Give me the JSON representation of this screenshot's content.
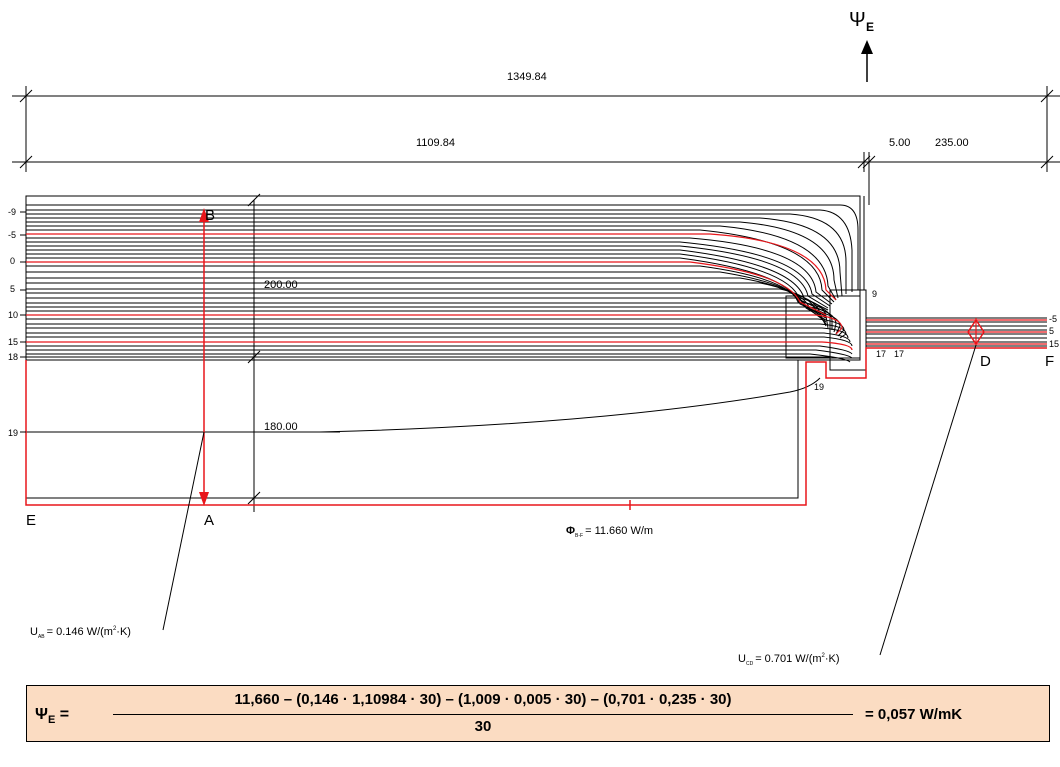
{
  "psi_top": {
    "symbol": "Ψ",
    "subscript": "E"
  },
  "dimensions": {
    "total": "1349.84",
    "left": "1109.84",
    "right_small": "5.00",
    "right_large": "235.00",
    "height_upper": "200.00",
    "height_lower": "180.00"
  },
  "isotherm_labels": {
    "left": [
      "-9",
      "-5",
      "0",
      "5",
      "10",
      "15",
      "18",
      "19"
    ],
    "center": [
      "9",
      "17",
      "17",
      "19"
    ],
    "right": [
      "-5",
      "5",
      "15"
    ]
  },
  "points": {
    "A": "A",
    "B": "B",
    "D": "D",
    "E": "E",
    "F": "F"
  },
  "annotations": {
    "phi": {
      "symbol": "Φ",
      "sub": "B-F",
      "text": "= 11.660 W/m"
    },
    "u_ab": {
      "symbol": "U",
      "sub": "AB",
      "text": "= 0.146 W/(m",
      "sup": "2",
      "tail": "·K)"
    },
    "u_cd": {
      "symbol": "U",
      "sub": "CD",
      "text": "= 0.701 W/(m",
      "sup": "2",
      "tail": "·K)"
    }
  },
  "formula": {
    "lhs_symbol": "Ψ",
    "lhs_sub": "E",
    "equals": "=",
    "numerator": "11,660 – (0,146 · 1,10984 · 30) – (1,009 · 0,005 · 30) – (0,701 · 0,235 · 30)",
    "denominator": "30",
    "result": "= 0,057 W/mK"
  },
  "colors": {
    "line": "#000000",
    "red": "#e8161b",
    "formula_bg": "#fbdcc2"
  }
}
